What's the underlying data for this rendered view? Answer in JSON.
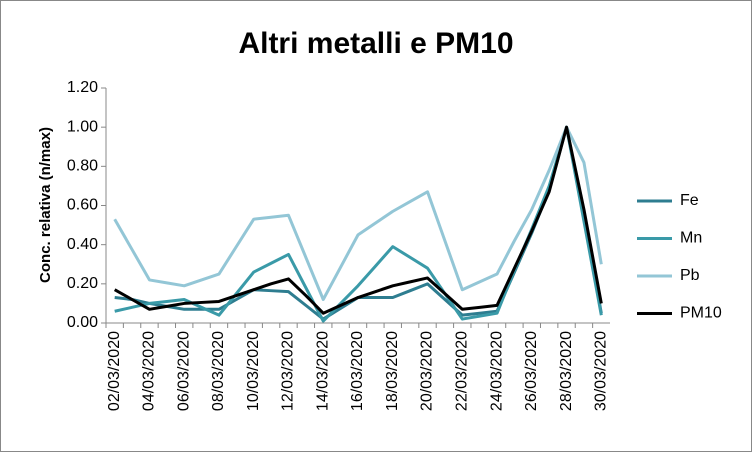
{
  "chart_data": {
    "type": "line",
    "title": "Altri metalli e PM10",
    "y_label": "Conc. relativa (n/max)",
    "categories": [
      "02/03/2020",
      null,
      "04/03/2020",
      null,
      "06/03/2020",
      null,
      "08/03/2020",
      null,
      "10/03/2020",
      null,
      "12/03/2020",
      null,
      "14/03/2020",
      null,
      "16/03/2020",
      null,
      "18/03/2020",
      null,
      "20/03/2020",
      null,
      "22/03/2020",
      null,
      "24/03/2020",
      null,
      "26/03/2020",
      null,
      "28/03/2020",
      null,
      "30/03/2020"
    ],
    "series": [
      {
        "name": "Fe",
        "color": "#2e7d90",
        "values": [
          0.13,
          0.12,
          0.1,
          0.085,
          0.07,
          0.07,
          0.07,
          0.12,
          0.17,
          0.165,
          0.16,
          0.09,
          0.02,
          0.075,
          0.13,
          0.13,
          0.13,
          0.165,
          0.2,
          0.12,
          0.04,
          0.05,
          0.06,
          0.26,
          0.46,
          0.68,
          1.0,
          0.55,
          0.05
        ]
      },
      {
        "name": "Mn",
        "color": "#3a9aa8",
        "values": [
          0.06,
          0.08,
          0.1,
          0.11,
          0.12,
          0.08,
          0.04,
          0.15,
          0.26,
          0.305,
          0.35,
          0.18,
          0.01,
          0.1,
          0.19,
          0.29,
          0.39,
          0.335,
          0.28,
          0.15,
          0.02,
          0.035,
          0.05,
          0.27,
          0.48,
          0.7,
          1.0,
          0.52,
          0.04
        ]
      },
      {
        "name": "Pb",
        "color": "#93c6d6",
        "values": [
          0.53,
          0.375,
          0.22,
          0.205,
          0.19,
          0.22,
          0.25,
          0.39,
          0.53,
          0.54,
          0.55,
          0.335,
          0.12,
          0.285,
          0.45,
          0.51,
          0.57,
          0.62,
          0.67,
          0.42,
          0.17,
          0.21,
          0.25,
          0.42,
          0.58,
          0.78,
          1.0,
          0.82,
          0.3
        ]
      },
      {
        "name": "PM10",
        "color": "#000000",
        "values": [
          0.17,
          0.12,
          0.07,
          0.085,
          0.1,
          0.105,
          0.11,
          0.14,
          0.17,
          0.2,
          0.225,
          0.14,
          0.05,
          0.09,
          0.13,
          0.16,
          0.19,
          0.21,
          0.23,
          0.15,
          0.07,
          0.08,
          0.09,
          0.28,
          0.47,
          0.67,
          1.0,
          0.58,
          0.1
        ]
      }
    ],
    "ylim": [
      0,
      1.2
    ],
    "yticks": [
      {
        "value": 0,
        "label": "0.00"
      },
      {
        "value": 0.2,
        "label": "0.20"
      },
      {
        "value": 0.4,
        "label": "0.40"
      },
      {
        "value": 0.6,
        "label": "0.60"
      },
      {
        "value": 0.8,
        "label": "0.80"
      },
      {
        "value": 1.0,
        "label": "1.00"
      },
      {
        "value": 1.2,
        "label": "1.20"
      }
    ],
    "legend": "right"
  }
}
